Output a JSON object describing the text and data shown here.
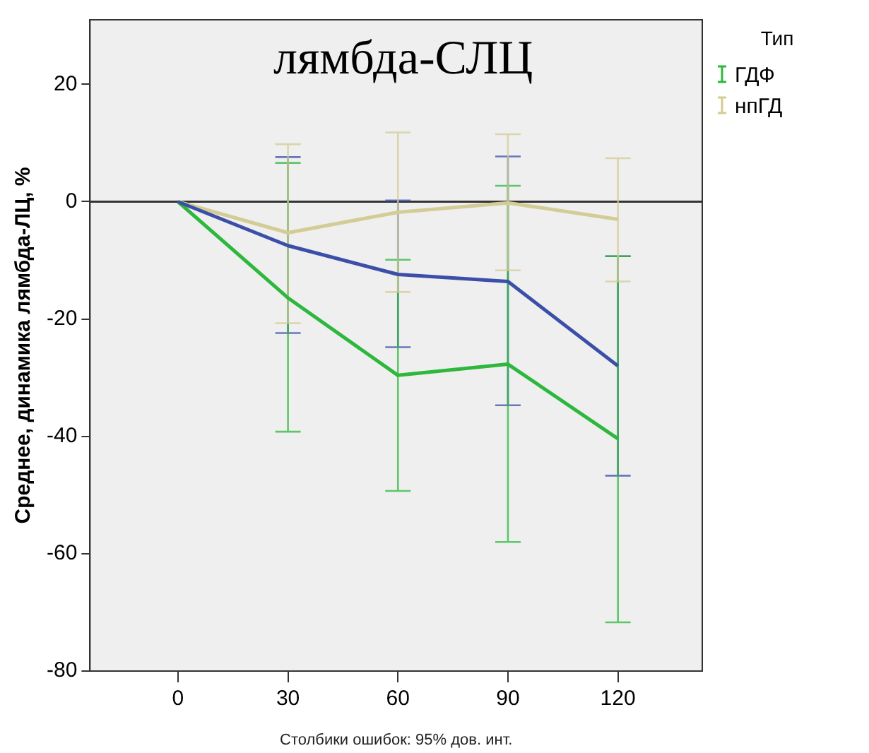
{
  "chart_data": {
    "type": "line",
    "title": "лямбда-СЛЦ",
    "ylabel": "Среднее, динамика лямбда-ЛЦ, %",
    "legend_title": "Тип",
    "annotations": [
      "Столбики ошибок: 95% дов. инт."
    ],
    "x": [
      0,
      30,
      60,
      90,
      120
    ],
    "xlim": [
      -24,
      143
    ],
    "xticks": [
      0,
      30,
      60,
      90,
      120
    ],
    "ylim": [
      -80,
      31
    ],
    "yticks": [
      -80,
      -60,
      -40,
      -20,
      0,
      20
    ],
    "grid": false,
    "legend": "right",
    "marker": "none",
    "line_style": "solid",
    "ref_lines": [
      {
        "axis": "y",
        "value": 0,
        "color": "#333333"
      }
    ],
    "series": [
      {
        "color": "#3c4fa8",
        "values": [
          0,
          -7.5,
          -12.4,
          -13.6,
          -28
        ],
        "errors": [
          null,
          [
            -22.4,
            7.6
          ],
          [
            -24.8,
            0.2
          ],
          [
            -34.7,
            7.7
          ],
          [
            -46.7,
            -9.3
          ]
        ]
      },
      {
        "name": "ГДФ",
        "color": "#2db83d",
        "values": [
          0,
          -16.4,
          -29.6,
          -27.7,
          -40.4
        ],
        "errors": [
          null,
          [
            -39.2,
            6.6
          ],
          [
            -49.3,
            -9.9
          ],
          [
            -58,
            2.7
          ],
          [
            -71.7,
            -9.3
          ]
        ]
      },
      {
        "name": "нпГД",
        "color": "#d3cc95",
        "values": [
          0,
          -5.3,
          -1.8,
          -0.2,
          -3
        ],
        "errors": [
          null,
          [
            -20.7,
            9.8
          ],
          [
            -15.4,
            11.8
          ],
          [
            -11.7,
            11.5
          ],
          [
            -13.6,
            7.4
          ]
        ]
      }
    ]
  }
}
